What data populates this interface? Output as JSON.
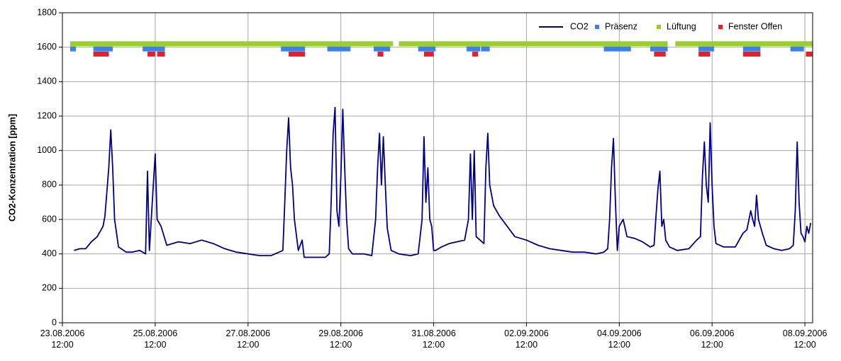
{
  "chart_data": {
    "type": "line",
    "y_label": "CO2-Konzentration [ppm]",
    "ylim": [
      0,
      1800
    ],
    "yticks": [
      0,
      200,
      400,
      600,
      800,
      1000,
      1200,
      1400,
      1600,
      1800
    ],
    "xlim": [
      "23.08.2006 12:00",
      "08.09.2006 16:00"
    ],
    "xticks": [
      "23.08.2006 12:00",
      "25.08.2006 12:00",
      "27.08.2006 12:00",
      "29.08.2006 12:00",
      "31.08.2006 12:00",
      "02.09.2006 12:00",
      "04.09.2006 12:00",
      "06.09.2006 12:00",
      "08.09.2006 12:00"
    ],
    "grid": true,
    "legend": "upper right",
    "series": [
      {
        "name": "CO2",
        "color": "#00007f",
        "x": [
          "23.08.2006 18:00",
          "23.08.2006 21:00",
          "24.08.2006 00:00",
          "24.08.2006 03:00",
          "24.08.2006 06:00",
          "24.08.2006 09:00",
          "24.08.2006 10:00",
          "24.08.2006 12:00",
          "24.08.2006 13:00",
          "24.08.2006 14:00",
          "24.08.2006 15:00",
          "24.08.2006 17:00",
          "24.08.2006 21:00",
          "25.08.2006 00:00",
          "25.08.2006 04:00",
          "25.08.2006 07:00",
          "25.08.2006 08:00",
          "25.08.2006 09:00",
          "25.08.2006 11:00",
          "25.08.2006 12:00",
          "25.08.2006 13:00",
          "25.08.2006 15:00",
          "25.08.2006 18:00",
          "26.08.2006 00:00",
          "26.08.2006 06:00",
          "26.08.2006 12:00",
          "26.08.2006 18:00",
          "27.08.2006 00:00",
          "27.08.2006 06:00",
          "27.08.2006 12:00",
          "27.08.2006 18:00",
          "28.08.2006 00:00",
          "28.08.2006 06:00",
          "28.08.2006 07:00",
          "28.08.2006 08:00",
          "28.08.2006 09:00",
          "28.08.2006 10:00",
          "28.08.2006 11:00",
          "28.08.2006 12:00",
          "28.08.2006 14:00",
          "28.08.2006 16:00",
          "28.08.2006 17:00",
          "28.08.2006 21:00",
          "29.08.2006 00:00",
          "29.08.2006 04:00",
          "29.08.2006 06:00",
          "29.08.2006 07:00",
          "29.08.2006 08:00",
          "29.08.2006 09:00",
          "29.08.2006 10:00",
          "29.08.2006 11:00",
          "29.08.2006 12:00",
          "29.08.2006 13:00",
          "29.08.2006 14:00",
          "29.08.2006 15:00",
          "29.08.2006 16:00",
          "29.08.2006 18:00",
          "30.08.2006 00:00",
          "30.08.2006 04:00",
          "30.08.2006 06:00",
          "30.08.2006 07:00",
          "30.08.2006 08:00",
          "30.08.2006 09:00",
          "30.08.2006 10:00",
          "30.08.2006 11:00",
          "30.08.2006 12:00",
          "30.08.2006 14:00",
          "30.08.2006 18:00",
          "31.08.2006 00:00",
          "31.08.2006 04:00",
          "31.08.2006 06:00",
          "31.08.2006 07:00",
          "31.08.2006 08:00",
          "31.08.2006 09:00",
          "31.08.2006 10:00",
          "31.08.2006 11:00",
          "31.08.2006 12:00",
          "31.08.2006 13:00",
          "31.08.2006 16:00",
          "31.08.2006 20:00",
          "01.09.2006 00:00",
          "01.09.2006 04:00",
          "01.09.2006 06:00",
          "01.09.2006 07:00",
          "01.09.2006 08:00",
          "01.09.2006 09:00",
          "01.09.2006 10:00",
          "01.09.2006 12:00",
          "01.09.2006 14:00",
          "01.09.2006 15:00",
          "01.09.2006 16:00",
          "01.09.2006 17:00",
          "01.09.2006 19:00",
          "01.09.2006 22:00",
          "02.09.2006 02:00",
          "02.09.2006 06:00",
          "02.09.2006 12:00",
          "02.09.2006 18:00",
          "03.09.2006 00:00",
          "03.09.2006 06:00",
          "03.09.2006 12:00",
          "03.09.2006 18:00",
          "04.09.2006 00:00",
          "04.09.2006 04:00",
          "04.09.2006 06:00",
          "04.09.2006 07:00",
          "04.09.2006 08:00",
          "04.09.2006 09:00",
          "04.09.2006 10:00",
          "04.09.2006 11:00",
          "04.09.2006 12:00",
          "04.09.2006 14:00",
          "04.09.2006 16:00",
          "04.09.2006 20:00",
          "05.09.2006 00:00",
          "05.09.2006 04:00",
          "05.09.2006 06:00",
          "05.09.2006 07:00",
          "05.09.2006 08:00",
          "05.09.2006 09:00",
          "05.09.2006 10:00",
          "05.09.2006 11:00",
          "05.09.2006 12:00",
          "05.09.2006 14:00",
          "05.09.2006 18:00",
          "06.09.2006 00:00",
          "06.09.2006 04:00",
          "06.09.2006 06:00",
          "06.09.2006 07:00",
          "06.09.2006 08:00",
          "06.09.2006 09:00",
          "06.09.2006 10:00",
          "06.09.2006 11:00",
          "06.09.2006 12:00",
          "06.09.2006 13:00",
          "06.09.2006 14:00",
          "06.09.2006 18:00",
          "07.09.2006 00:00",
          "07.09.2006 04:00",
          "07.09.2006 06:00",
          "07.09.2006 08:00",
          "07.09.2006 09:00",
          "07.09.2006 10:00",
          "07.09.2006 11:00",
          "07.09.2006 12:00",
          "07.09.2006 14:00",
          "07.09.2006 16:00",
          "07.09.2006 20:00",
          "08.09.2006 00:00",
          "08.09.2006 04:00",
          "08.09.2006 06:00",
          "08.09.2006 07:00",
          "08.09.2006 08:00",
          "08.09.2006 09:00",
          "08.09.2006 10:00",
          "08.09.2006 11:00",
          "08.09.2006 12:00",
          "08.09.2006 13:00",
          "08.09.2006 14:00",
          "08.09.2006 15:00"
        ],
        "values": [
          420,
          430,
          430,
          470,
          500,
          560,
          620,
          900,
          1120,
          900,
          600,
          440,
          410,
          410,
          420,
          400,
          880,
          420,
          800,
          980,
          600,
          560,
          450,
          470,
          460,
          480,
          460,
          430,
          410,
          400,
          390,
          390,
          420,
          700,
          1000,
          1190,
          900,
          800,
          600,
          420,
          480,
          380,
          380,
          380,
          380,
          400,
          700,
          1100,
          1250,
          650,
          560,
          850,
          1240,
          900,
          600,
          430,
          400,
          400,
          390,
          600,
          900,
          1100,
          800,
          1080,
          800,
          550,
          420,
          400,
          390,
          400,
          600,
          1080,
          700,
          900,
          600,
          560,
          420,
          420,
          440,
          460,
          470,
          480,
          600,
          980,
          600,
          1000,
          500,
          480,
          460,
          900,
          1100,
          800,
          680,
          620,
          560,
          500,
          480,
          450,
          430,
          420,
          410,
          410,
          400,
          410,
          430,
          600,
          900,
          1070,
          700,
          420,
          560,
          600,
          500,
          490,
          470,
          440,
          450,
          620,
          780,
          880,
          560,
          600,
          480,
          440,
          420,
          430,
          480,
          500,
          850,
          1050,
          800,
          700,
          1160,
          800,
          560,
          460,
          440,
          440,
          520,
          540,
          650,
          600,
          560,
          740,
          600,
          520,
          450,
          430,
          420,
          430,
          450,
          650,
          1050,
          700,
          520,
          500,
          470,
          560,
          520,
          580
        ]
      },
      {
        "name": "Präsenz",
        "color": "#3f7fe8",
        "level": 1590,
        "intervals": [
          [
            "23.08.2006 16:00",
            "23.08.2006 19:00"
          ],
          [
            "24.08.2006 04:00",
            "24.08.2006 14:00"
          ],
          [
            "25.08.2006 05:30",
            "25.08.2006 17:00"
          ],
          [
            "28.08.2006 05:00",
            "28.08.2006 17:30"
          ],
          [
            "29.08.2006 05:00",
            "29.08.2006 17:00"
          ],
          [
            "30.08.2006 05:00",
            "30.08.2006 13:30"
          ],
          [
            "31.08.2006 04:00",
            "31.08.2006 13:00"
          ],
          [
            "01.09.2006 05:00",
            "01.09.2006 12:00"
          ],
          [
            "01.09.2006 12:30",
            "01.09.2006 17:00"
          ],
          [
            "04.09.2006 04:00",
            "04.09.2006 18:00"
          ],
          [
            "05.09.2006 04:00",
            "05.09.2006 13:00"
          ],
          [
            "06.09.2006 05:00",
            "06.09.2006 13:00"
          ],
          [
            "07.09.2006 04:00",
            "07.09.2006 13:00"
          ],
          [
            "08.09.2006 04:30",
            "08.09.2006 11:30"
          ]
        ]
      },
      {
        "name": "Lüftung",
        "color": "#9acd32",
        "level": 1620,
        "intervals": [
          [
            "23.08.2006 16:00",
            "30.08.2006 15:00"
          ],
          [
            "30.08.2006 18:00",
            "05.09.2006 13:00"
          ],
          [
            "05.09.2006 17:00",
            "08.09.2006 16:00"
          ]
        ]
      },
      {
        "name": "Fenster Offen",
        "color": "#ee1c25",
        "level": 1560,
        "intervals": [
          [
            "24.08.2006 04:00",
            "24.08.2006 12:00"
          ],
          [
            "25.08.2006 08:00",
            "25.08.2006 12:00"
          ],
          [
            "25.08.2006 13:00",
            "25.08.2006 17:00"
          ],
          [
            "28.08.2006 09:00",
            "28.08.2006 17:30"
          ],
          [
            "30.08.2006 07:00",
            "30.08.2006 10:00"
          ],
          [
            "31.08.2006 07:00",
            "31.08.2006 12:00"
          ],
          [
            "01.09.2006 08:00",
            "01.09.2006 11:00"
          ],
          [
            "05.09.2006 06:00",
            "05.09.2006 12:00"
          ],
          [
            "06.09.2006 05:00",
            "06.09.2006 11:00"
          ],
          [
            "07.09.2006 04:00",
            "07.09.2006 13:00"
          ],
          [
            "08.09.2006 12:30",
            "08.09.2006 16:00"
          ]
        ]
      }
    ]
  }
}
